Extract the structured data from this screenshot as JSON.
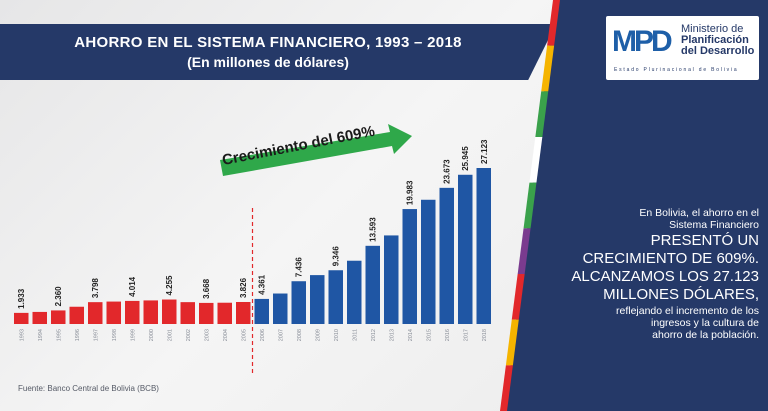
{
  "header": {
    "title": "AHORRO EN EL SISTEMA FINANCIERO, 1993 – 2018",
    "subtitle": "(En millones de dólares)"
  },
  "logo": {
    "mark": "MPD",
    "line1": "Ministerio de",
    "line2": "Planificación",
    "line3": "del Desarrollo",
    "sub": "Estado Plurinacional de Bolivia"
  },
  "annotation": {
    "growth_label": "Crecimiento del 609%"
  },
  "panel": {
    "line1": "En Bolivia, el ahorro en el",
    "line2": "Sistema Financiero",
    "line3": "PRESENTÓ UN",
    "line4": "CRECIMIENTO DE 609%.",
    "line5": "ALCANZAMOS LOS 27.123",
    "line6": "MILLONES DÓLARES,",
    "line7": "reflejando el incremento de los",
    "line8": "ingresos y la cultura de",
    "line9": "ahorro de la población."
  },
  "source": "Fuente: Banco Central de Bolivia (BCB)",
  "colors": {
    "navy": "#253968",
    "red": "#e2282b",
    "blue": "#1f56a4",
    "arrow": "#2fa84a"
  },
  "chart_data": {
    "type": "bar",
    "title": "AHORRO EN EL SISTEMA FINANCIERO, 1993 – 2018",
    "subtitle": "(En millones de dólares)",
    "categories": [
      "1993",
      "1994",
      "1995",
      "1996",
      "1997",
      "1998",
      "1999",
      "2000",
      "2001",
      "2002",
      "2003",
      "2004",
      "2005",
      "2006",
      "2007",
      "2008",
      "2009",
      "2010",
      "2011",
      "2012",
      "2013",
      "2014",
      "2015",
      "2016",
      "2017",
      "2018"
    ],
    "values": [
      1933,
      2100,
      2360,
      3000,
      3798,
      3900,
      4014,
      4100,
      4255,
      3800,
      3668,
      3700,
      3826,
      4361,
      5300,
      7436,
      8500,
      9346,
      11000,
      13593,
      15400,
      19983,
      21600,
      23673,
      25945,
      27123
    ],
    "data_labels": [
      {
        "index": 0,
        "text": "1.933"
      },
      {
        "index": 2,
        "text": "2.360"
      },
      {
        "index": 4,
        "text": "3.798"
      },
      {
        "index": 6,
        "text": "4.014"
      },
      {
        "index": 8,
        "text": "4.255"
      },
      {
        "index": 10,
        "text": "3.668"
      },
      {
        "index": 12,
        "text": "3.826"
      },
      {
        "index": 13,
        "text": "4.361"
      },
      {
        "index": 15,
        "text": "7.436"
      },
      {
        "index": 17,
        "text": "9.346"
      },
      {
        "index": 19,
        "text": "13.593"
      },
      {
        "index": 21,
        "text": "19.983"
      },
      {
        "index": 23,
        "text": "23.673"
      },
      {
        "index": 24,
        "text": "25.945"
      },
      {
        "index": 25,
        "text": "27.123"
      }
    ],
    "red_through": "2005",
    "divider_after": "2005",
    "ylim": [
      0,
      27123
    ],
    "grid": false,
    "legend": "none"
  }
}
